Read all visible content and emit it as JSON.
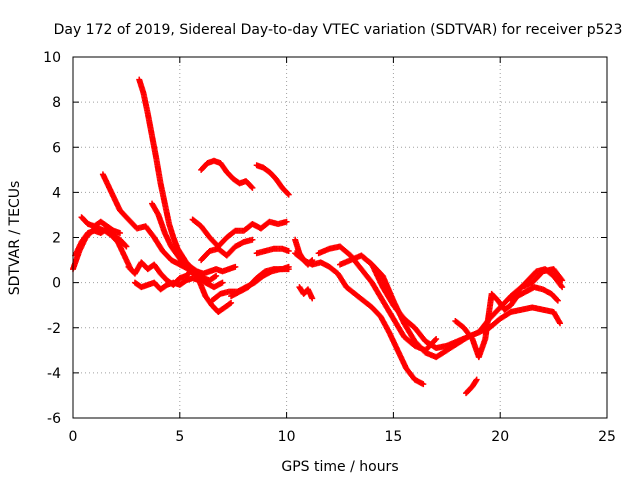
{
  "chart_data": {
    "type": "scatter",
    "title": "Day 172 of 2019, Sidereal Day-to-day VTEC variation (SDTVAR) for receiver p523",
    "xlabel": "GPS time / hours",
    "ylabel": "SDTVAR / TECUs",
    "xlim": [
      0,
      25
    ],
    "ylim": [
      -6,
      10
    ],
    "xticks": [
      0,
      5,
      10,
      15,
      20,
      25
    ],
    "yticks": [
      -6,
      -4,
      -2,
      0,
      2,
      4,
      6,
      8,
      10
    ],
    "grid": true,
    "marker": "plus",
    "color": "#ff0000",
    "series": [
      {
        "x": [
          0.0,
          0.3,
          0.6,
          0.9,
          1.2,
          1.5,
          1.8,
          2.1,
          2.4,
          2.7
        ],
        "y": [
          0.6,
          1.4,
          2.0,
          2.3,
          2.4,
          2.3,
          2.1,
          1.8,
          1.2,
          0.6
        ]
      },
      {
        "x": [
          0.1,
          0.4,
          0.7,
          1.0,
          1.3,
          1.6,
          1.9,
          2.2,
          2.5
        ],
        "y": [
          1.2,
          1.8,
          2.2,
          2.3,
          2.2,
          2.4,
          2.1,
          1.9,
          1.6
        ]
      },
      {
        "x": [
          0.4,
          0.7,
          1.0,
          1.3,
          1.6,
          1.9,
          2.2
        ],
        "y": [
          2.9,
          2.6,
          2.5,
          2.7,
          2.5,
          2.3,
          2.2
        ]
      },
      {
        "x": [
          3.1,
          3.3,
          3.5,
          3.7,
          3.9,
          4.1,
          4.3,
          4.5,
          4.7,
          4.9,
          5.1,
          5.3,
          5.5,
          5.8,
          6.1,
          6.4,
          6.7,
          7.0,
          7.3,
          7.6
        ],
        "y": [
          9.0,
          8.4,
          7.5,
          6.5,
          5.5,
          4.4,
          3.5,
          2.6,
          2.0,
          1.5,
          1.2,
          0.9,
          0.7,
          0.5,
          0.4,
          0.5,
          0.6,
          0.5,
          0.6,
          0.7
        ]
      },
      {
        "x": [
          1.4,
          1.8,
          2.2,
          2.6,
          3.0,
          3.4,
          3.8,
          4.2,
          4.6,
          5.0,
          5.4,
          5.8,
          6.2,
          6.6,
          7.0
        ],
        "y": [
          4.8,
          4.0,
          3.2,
          2.8,
          2.4,
          2.5,
          2.0,
          1.4,
          1.0,
          0.8,
          0.6,
          0.3,
          0.0,
          -0.2,
          0.0
        ]
      },
      {
        "x": [
          3.7,
          4.0,
          4.3,
          4.6,
          4.9,
          5.2,
          5.5,
          5.8,
          6.1,
          6.4,
          6.7
        ],
        "y": [
          3.5,
          3.0,
          2.2,
          1.6,
          1.2,
          0.8,
          0.5,
          0.3,
          0.2,
          0.1,
          0.3
        ]
      },
      {
        "x": [
          2.6,
          2.9,
          3.2,
          3.5,
          3.8,
          4.1,
          4.4,
          4.7,
          5.0,
          5.3,
          5.6
        ],
        "y": [
          0.7,
          0.4,
          0.9,
          0.6,
          0.8,
          0.4,
          0.1,
          -0.1,
          0.2,
          0.3,
          0.6
        ]
      },
      {
        "x": [
          2.9,
          3.2,
          3.5,
          3.8,
          4.1,
          4.4,
          4.7,
          5.0,
          5.3,
          5.6,
          5.9,
          6.2,
          6.5,
          6.8,
          7.1,
          7.4
        ],
        "y": [
          0.0,
          -0.2,
          -0.1,
          0.0,
          -0.3,
          -0.1,
          0.0,
          -0.1,
          0.1,
          0.2,
          0.1,
          -0.6,
          -1.0,
          -1.3,
          -1.1,
          -0.9
        ]
      },
      {
        "x": [
          5.6,
          6.0,
          6.4,
          6.8,
          7.2,
          7.6,
          8.0,
          8.4,
          8.8,
          9.2,
          9.6,
          10.0
        ],
        "y": [
          2.8,
          2.5,
          2.0,
          1.6,
          2.0,
          2.3,
          2.3,
          2.6,
          2.4,
          2.7,
          2.6,
          2.7
        ]
      },
      {
        "x": [
          6.0,
          6.4,
          6.8,
          7.2,
          7.6,
          8.0,
          8.4
        ],
        "y": [
          1.0,
          1.4,
          1.5,
          1.2,
          1.6,
          1.8,
          1.9
        ]
      },
      {
        "x": [
          6.5,
          6.9,
          7.3,
          7.7,
          8.1,
          8.5,
          8.9,
          9.3,
          9.7,
          10.1
        ],
        "y": [
          -0.8,
          -0.5,
          -0.4,
          -0.4,
          -0.2,
          0.0,
          0.3,
          0.5,
          0.6,
          0.6
        ]
      },
      {
        "x": [
          8.6,
          9.0,
          9.4,
          9.8,
          10.1
        ],
        "y": [
          1.3,
          1.4,
          1.5,
          1.5,
          1.4
        ]
      },
      {
        "x": [
          7.4,
          7.8,
          8.2,
          8.6,
          9.0,
          9.4,
          9.8,
          10.1
        ],
        "y": [
          -0.6,
          -0.4,
          -0.2,
          0.2,
          0.5,
          0.6,
          0.6,
          0.7
        ]
      },
      {
        "x": [
          6.0,
          6.3,
          6.6,
          6.9,
          7.2,
          7.5,
          7.8,
          8.1,
          8.4
        ],
        "y": [
          5.0,
          5.3,
          5.4,
          5.3,
          4.9,
          4.6,
          4.4,
          4.5,
          4.2
        ]
      },
      {
        "x": [
          8.6,
          8.9,
          9.2,
          9.5,
          9.8,
          10.1
        ],
        "y": [
          5.2,
          5.1,
          4.9,
          4.6,
          4.2,
          3.9
        ]
      },
      {
        "x": [
          10.4,
          10.6,
          10.8,
          11.0,
          11.2
        ],
        "y": [
          1.9,
          1.3,
          1.0,
          0.8,
          1.0
        ]
      },
      {
        "x": [
          10.6,
          10.8,
          11.0,
          11.2
        ],
        "y": [
          -0.2,
          -0.5,
          -0.3,
          -0.7
        ]
      },
      {
        "x": [
          10.4,
          10.8,
          11.2,
          11.6,
          12.0,
          12.4,
          12.8,
          13.2,
          13.6,
          14.0,
          14.4,
          14.8,
          15.2,
          15.6,
          16.0,
          16.4
        ],
        "y": [
          1.3,
          1.0,
          0.8,
          0.9,
          0.7,
          0.4,
          -0.2,
          -0.5,
          -0.8,
          -1.1,
          -1.5,
          -2.2,
          -3.0,
          -3.8,
          -4.3,
          -4.5
        ]
      },
      {
        "x": [
          11.5,
          12.0,
          12.5,
          13.0,
          13.5,
          14.0,
          14.5,
          15.0,
          15.5,
          16.0,
          16.5,
          17.0
        ],
        "y": [
          1.3,
          1.5,
          1.6,
          1.2,
          0.6,
          0.0,
          -0.8,
          -1.6,
          -2.4,
          -2.8,
          -3.0,
          -2.5
        ]
      },
      {
        "x": [
          12.5,
          13.0,
          13.5,
          14.0,
          14.5,
          15.0,
          15.5,
          16.0,
          16.5,
          17.0,
          17.5,
          18.0,
          18.5,
          19.0,
          19.5,
          20.0,
          20.5,
          21.0,
          21.5,
          22.0,
          22.5,
          22.8
        ],
        "y": [
          0.8,
          1.0,
          1.2,
          0.8,
          -0.2,
          -1.0,
          -1.6,
          -2.0,
          -2.6,
          -2.9,
          -2.8,
          -2.6,
          -2.4,
          -2.2,
          -2.0,
          -1.6,
          -1.3,
          -1.2,
          -1.1,
          -1.2,
          -1.3,
          -1.8
        ]
      },
      {
        "x": [
          13.5,
          14.0,
          14.5,
          15.0,
          15.5,
          16.0,
          16.5,
          17.0,
          17.5,
          18.0,
          18.5,
          19.0,
          19.5,
          20.0,
          20.5,
          21.0,
          21.5,
          22.0,
          22.5,
          22.9
        ],
        "y": [
          1.2,
          0.8,
          0.3,
          -0.8,
          -1.8,
          -2.6,
          -3.1,
          -3.3,
          -3.0,
          -2.7,
          -2.4,
          -2.2,
          -1.6,
          -1.1,
          -0.6,
          -0.2,
          0.0,
          0.5,
          0.6,
          0.1
        ]
      },
      {
        "x": [
          17.9,
          18.3,
          18.7,
          19.0,
          19.3,
          19.6,
          19.9,
          20.2,
          20.5,
          20.8,
          21.2,
          21.6,
          22.0,
          22.4,
          22.7
        ],
        "y": [
          -1.7,
          -2.0,
          -2.5,
          -3.3,
          -2.5,
          -0.5,
          -0.8,
          -1.2,
          -1.0,
          -0.6,
          -0.4,
          -0.2,
          -0.3,
          -0.5,
          -0.8
        ]
      },
      {
        "x": [
          18.4,
          18.7,
          18.9
        ],
        "y": [
          -4.9,
          -4.6,
          -4.3
        ]
      },
      {
        "x": [
          20.5,
          20.9,
          21.3,
          21.7,
          22.1,
          22.5,
          22.9
        ],
        "y": [
          -0.8,
          -0.3,
          0.1,
          0.5,
          0.6,
          0.3,
          -0.2
        ]
      }
    ]
  }
}
